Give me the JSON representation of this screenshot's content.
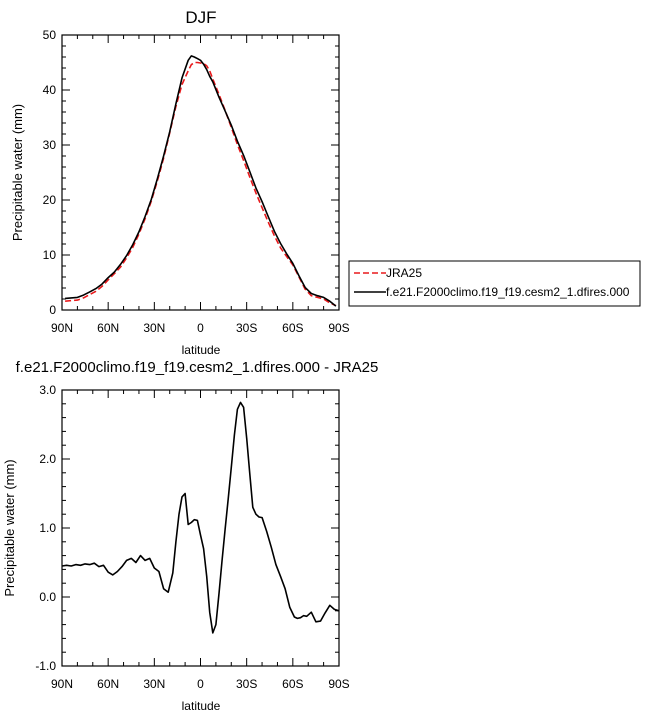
{
  "chart_data": [
    {
      "type": "line",
      "title": "DJF",
      "xlabel": "latitude",
      "ylabel": "Precipitable water (mm)",
      "xlim": [
        -90,
        90
      ],
      "ylim": [
        0,
        50
      ],
      "xticks": [
        -90,
        -60,
        -30,
        0,
        30,
        60,
        90
      ],
      "xticklabels": [
        "90N",
        "60N",
        "30N",
        "0",
        "30S",
        "60S",
        "90S"
      ],
      "yticks": [
        0,
        10,
        20,
        30,
        40,
        50
      ],
      "yticklabels": [
        "0",
        "10",
        "20",
        "30",
        "40",
        "50"
      ],
      "grid": false,
      "legend_position": "right",
      "series": [
        {
          "name": "JRA25",
          "color": "#e8191b",
          "style": "dashed",
          "x": [
            -88,
            -84,
            -80,
            -76,
            -72,
            -68,
            -64,
            -60,
            -56,
            -52,
            -48,
            -44,
            -40,
            -36,
            -32,
            -28,
            -24,
            -20,
            -16,
            -12,
            -8,
            -6,
            -4,
            -2,
            0,
            2,
            4,
            6,
            8,
            12,
            16,
            20,
            24,
            28,
            32,
            36,
            40,
            44,
            48,
            52,
            56,
            60,
            64,
            68,
            72,
            76,
            80,
            84,
            88
          ],
          "y": [
            1.6,
            1.7,
            1.8,
            2.2,
            2.8,
            3.4,
            4.3,
            5.5,
            6.6,
            7.8,
            9.5,
            11.4,
            13.8,
            16.6,
            19.8,
            23.5,
            27.6,
            32.2,
            37.0,
            41.0,
            43.5,
            44.6,
            45.0,
            45.0,
            44.9,
            44.8,
            44.4,
            43.5,
            42.0,
            39.2,
            36.3,
            33.2,
            30.1,
            27.2,
            24.2,
            21.3,
            18.6,
            16.0,
            13.5,
            11.3,
            9.7,
            8.2,
            6.0,
            3.8,
            2.6,
            2.3,
            2.0,
            1.3,
            0.8
          ]
        },
        {
          "name": "f.e21.F2000climo.f19_f19.cesm2_1.dfires.000",
          "color": "#000000",
          "style": "solid",
          "x": [
            -88,
            -84,
            -80,
            -76,
            -72,
            -68,
            -64,
            -60,
            -56,
            -52,
            -48,
            -44,
            -40,
            -36,
            -32,
            -28,
            -24,
            -20,
            -16,
            -12,
            -8,
            -6,
            -4,
            -2,
            0,
            2,
            4,
            6,
            8,
            12,
            16,
            20,
            24,
            28,
            32,
            36,
            40,
            44,
            48,
            52,
            56,
            60,
            64,
            68,
            72,
            76,
            80,
            84,
            88
          ],
          "y": [
            2.1,
            2.2,
            2.3,
            2.7,
            3.3,
            3.9,
            4.7,
            5.9,
            6.9,
            8.3,
            9.9,
            11.9,
            14.2,
            17.0,
            20.1,
            23.9,
            28.0,
            32.4,
            37.5,
            42.2,
            45.4,
            46.2,
            46.0,
            45.7,
            45.4,
            44.7,
            43.7,
            42.5,
            41.5,
            38.7,
            36.2,
            33.6,
            30.7,
            28.1,
            25.2,
            22.2,
            19.7,
            17.0,
            14.3,
            12.1,
            10.2,
            8.5,
            6.2,
            4.1,
            3.0,
            2.6,
            2.3,
            1.6,
            0.7
          ]
        }
      ]
    },
    {
      "type": "line",
      "title": "f.e21.F2000climo.f19_f19.cesm2_1.dfires.000 - JRA25",
      "xlabel": "latitude",
      "ylabel": "Precipitable water (mm)",
      "xlim": [
        -90,
        90
      ],
      "ylim": [
        -1.0,
        3.0
      ],
      "xticks": [
        -90,
        -60,
        -30,
        0,
        30,
        60,
        90
      ],
      "xticklabels": [
        "90N",
        "60N",
        "30N",
        "0",
        "30S",
        "60S",
        "90S"
      ],
      "yticks": [
        -1.0,
        0.0,
        1.0,
        2.0,
        3.0
      ],
      "yticklabels": [
        "-1.0",
        "0.0",
        "1.0",
        "2.0",
        "3.0"
      ],
      "grid": false,
      "series": [
        {
          "color": "#000000",
          "style": "solid",
          "x": [
            -90,
            -87,
            -84,
            -81,
            -78,
            -75,
            -72,
            -69,
            -66,
            -63,
            -60,
            -57,
            -54,
            -51,
            -48,
            -45,
            -42,
            -39,
            -36,
            -33,
            -30,
            -27,
            -24,
            -21,
            -18,
            -16,
            -14,
            -12,
            -10,
            -8,
            -6,
            -4,
            -2,
            0,
            2,
            4,
            6,
            8,
            10,
            12,
            14,
            16,
            18,
            20,
            22,
            24,
            26,
            28,
            30,
            32,
            34,
            36,
            38,
            40,
            43,
            46,
            49,
            52,
            55,
            58,
            61,
            63,
            65,
            67,
            69,
            72,
            75,
            78,
            81,
            84,
            87,
            90
          ],
          "y": [
            0.45,
            0.46,
            0.45,
            0.47,
            0.46,
            0.48,
            0.47,
            0.49,
            0.44,
            0.46,
            0.36,
            0.32,
            0.37,
            0.44,
            0.53,
            0.56,
            0.5,
            0.6,
            0.53,
            0.56,
            0.42,
            0.37,
            0.12,
            0.07,
            0.35,
            0.8,
            1.2,
            1.45,
            1.5,
            1.05,
            1.08,
            1.12,
            1.11,
            0.9,
            0.7,
            0.3,
            -0.22,
            -0.52,
            -0.4,
            0.05,
            0.52,
            0.98,
            1.42,
            1.88,
            2.35,
            2.72,
            2.82,
            2.75,
            2.3,
            1.8,
            1.3,
            1.2,
            1.16,
            1.15,
            0.95,
            0.72,
            0.47,
            0.3,
            0.12,
            -0.15,
            -0.29,
            -0.31,
            -0.3,
            -0.27,
            -0.28,
            -0.22,
            -0.36,
            -0.35,
            -0.23,
            -0.12,
            -0.18,
            -0.2
          ]
        }
      ]
    }
  ]
}
